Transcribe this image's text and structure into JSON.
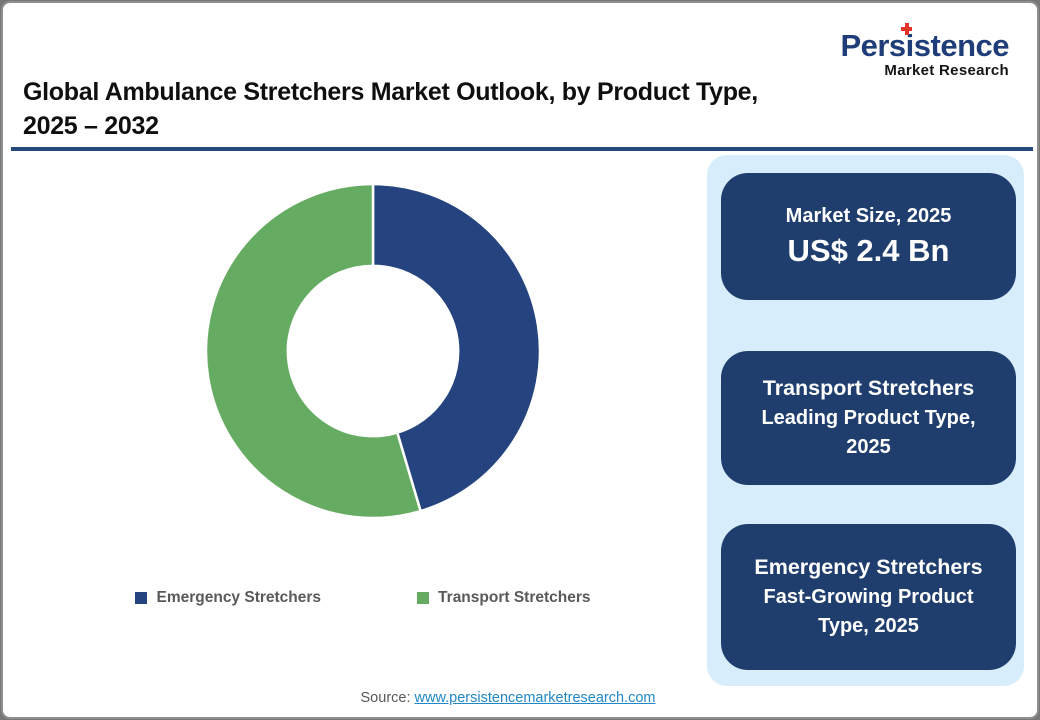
{
  "logo": {
    "brand": "Persistence",
    "tagline": "Market Research"
  },
  "title": {
    "line1": "Global Ambulance Stretchers Market Outlook, by Product Type,",
    "line2": "2025 – 2032"
  },
  "chart_data": {
    "type": "pie",
    "subtype": "donut",
    "title": "Global Ambulance Stretchers Market Outlook, by Product Type, 2025 – 2032",
    "categories": [
      "Emergency Stretchers",
      "Transport Stretchers"
    ],
    "values": [
      45.4,
      54.6
    ],
    "colors": [
      "#25447f",
      "#66ab62"
    ],
    "start_angle_deg": 0,
    "inner_radius_ratio": 0.51,
    "legend_position": "bottom",
    "data_labels": "none"
  },
  "legend": {
    "items": [
      {
        "label": "Emergency Stretchers",
        "color": "#25447f"
      },
      {
        "label": "Transport Stretchers",
        "color": "#66ab62"
      }
    ]
  },
  "side_panel": {
    "cards": [
      {
        "line1": "Market Size, 2025",
        "line2": "US$ 2.4 Bn"
      },
      {
        "line1": "Transport Stretchers",
        "line2": "Leading Product Type, 2025"
      },
      {
        "line1": "Emergency Stretchers",
        "line2": "Fast-Growing Product Type, 2025"
      }
    ]
  },
  "source": {
    "label": "Source:",
    "link_text": "www.persistencemarketresearch.com"
  },
  "colors": {
    "accent_navy": "#1f3e6e",
    "divider": "#26497c",
    "panel_bg": "#d7edfb",
    "link": "#2287c7",
    "brand_blue": "#1e3d79",
    "brand_mark_red": "#e63329",
    "legend_text": "#595959",
    "donut_blue": "#25447f",
    "donut_green": "#66ab62"
  }
}
